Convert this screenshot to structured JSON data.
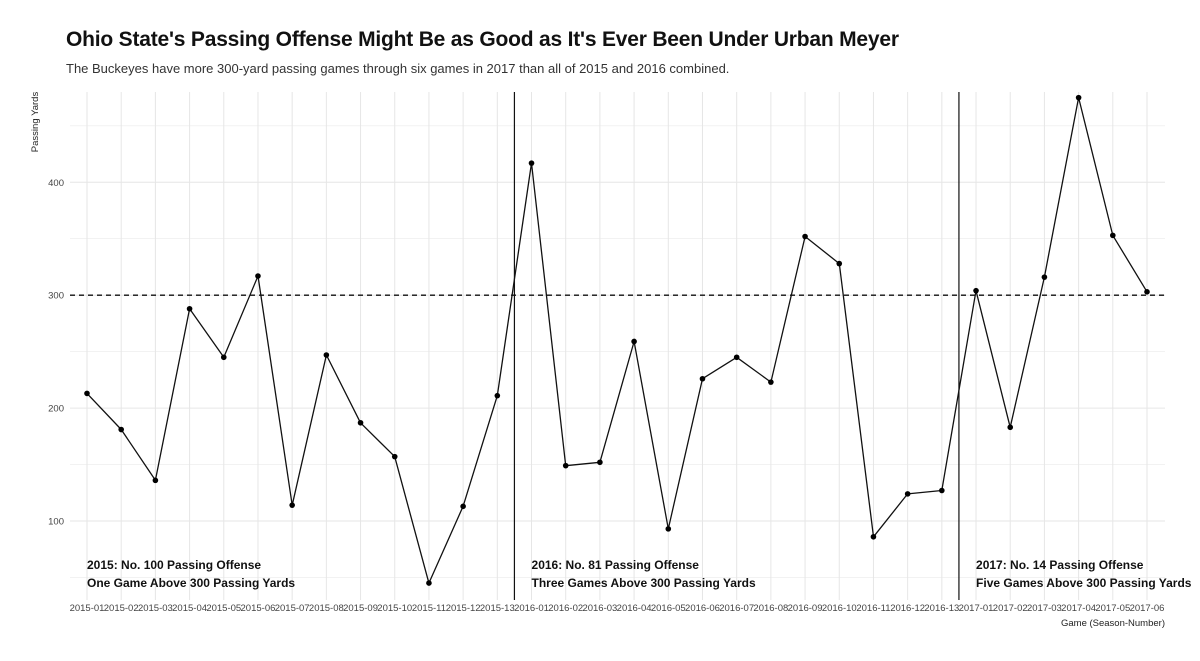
{
  "title": "Ohio State's Passing Offense Might Be as Good as It's Ever Been Under Urban Meyer",
  "subtitle": "The Buckeyes have more 300-yard passing games through six games in 2017 than all of 2015 and 2016 combined.",
  "chart_data": {
    "type": "line",
    "title": "Ohio State's Passing Offense Might Be as Good as It's Ever Been Under Urban Meyer",
    "subtitle": "The Buckeyes have more 300-yard passing games through six games in 2017 than all of 2015 and 2016 combined.",
    "xlabel": "Game (Season-Number)",
    "ylabel": "Passing Yards",
    "ylim": [
      30,
      480
    ],
    "yticks": [
      100,
      200,
      300,
      400
    ],
    "grid": true,
    "categories": [
      "2015-01",
      "2015-02",
      "2015-03",
      "2015-04",
      "2015-05",
      "2015-06",
      "2015-07",
      "2015-08",
      "2015-09",
      "2015-10",
      "2015-11",
      "2015-12",
      "2015-13",
      "2016-01",
      "2016-02",
      "2016-03",
      "2016-04",
      "2016-05",
      "2016-06",
      "2016-07",
      "2016-08",
      "2016-09",
      "2016-10",
      "2016-11",
      "2016-12",
      "2016-13",
      "2017-01",
      "2017-02",
      "2017-03",
      "2017-04",
      "2017-05",
      "2017-06"
    ],
    "series": [
      {
        "values": [
          213,
          181,
          136,
          288,
          245,
          317,
          114,
          247,
          187,
          157,
          45,
          113,
          211,
          417,
          149,
          152,
          259,
          93,
          226,
          245,
          223,
          352,
          328,
          86,
          124,
          127,
          304,
          183,
          316,
          475,
          353,
          303
        ]
      }
    ],
    "reference_line": {
      "y": 300,
      "style": "dashed"
    },
    "season_dividers": [
      "2016-01",
      "2017-01"
    ],
    "annotations": [
      {
        "season": "2015",
        "line1": "2015: No. 100 Passing Offense",
        "line2": "One Game Above 300 Passing Yards"
      },
      {
        "season": "2016",
        "line1": "2016: No. 81 Passing Offense",
        "line2": "Three Games Above 300 Passing Yards"
      },
      {
        "season": "2017",
        "line1": "2017: No. 14 Passing Offense",
        "line2": "Five Games Above 300 Passing Yards"
      }
    ],
    "colors": {
      "line": "#111111",
      "point": "#000000",
      "grid": "#e6e6e6",
      "reference": "#111111"
    }
  }
}
